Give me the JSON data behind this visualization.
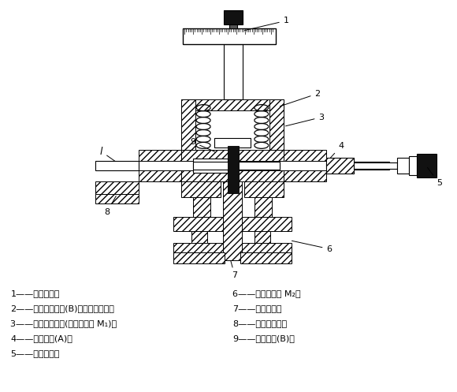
{
  "bg_color": "#ffffff",
  "legend_items_left": [
    "1——测微计头；",
    "2——连接可调电极(B)的金属波纹管；",
    "3——放试样的空间(试样电容器 M₁)；",
    "4——固定电极(A)；",
    "5——测微计头；"
  ],
  "legend_items_right": [
    "6——微调电容器 M₂；",
    "7——接检测器；",
    "8——接到电路上；",
    "9——可调电极(B)。"
  ],
  "figure_width": 5.8,
  "figure_height": 4.97,
  "dpi": 100
}
